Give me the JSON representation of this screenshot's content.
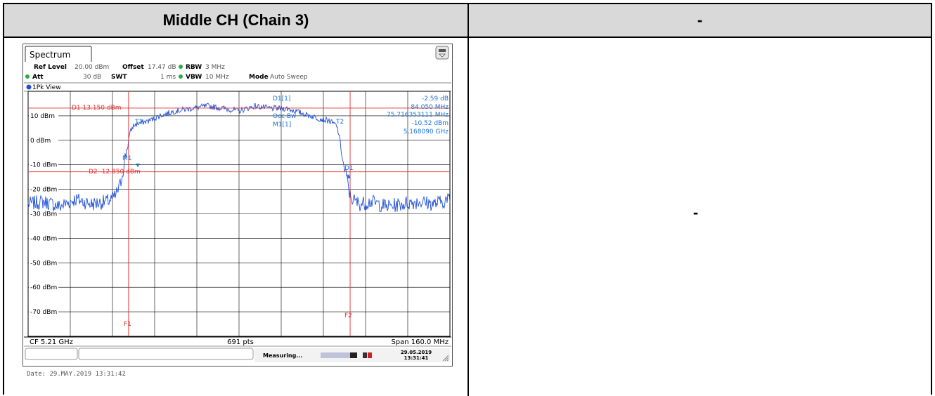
{
  "table": {
    "left_header": "Middle CH (Chain 3)",
    "right_header": "-",
    "right_content": "-"
  },
  "analyzer": {
    "tab_label": "Spectrum",
    "settings": {
      "ref_level_label": "Ref Level",
      "ref_level_value": "20.00 dBm",
      "offset_label": "Offset",
      "offset_value": "17.47 dB",
      "rbw_label": "RBW",
      "rbw_value": "3 MHz",
      "att_label": "Att",
      "att_value": "30 dB",
      "swt_label": "SWT",
      "swt_value": "1 ms",
      "vbw_label": "VBW",
      "vbw_value": "10 MHz",
      "mode_label": "Mode",
      "mode_value": "Auto Sweep"
    },
    "view_label": "1Pk View",
    "marker_readout": {
      "d1_label": "D1[1]",
      "d1_value": "-2.59 dB",
      "d1_freq": "84.050 MHz",
      "occ_bw_label": "Occ Bw",
      "occ_bw_value": "75.716353111 MHz",
      "m1_label": "M1[1]",
      "m1_value": "-10.52 dBm",
      "m1_freq": "5.168090 GHz"
    },
    "display_lines": {
      "d1": "D1  13.150 dBm",
      "d2": "D2  -12.850 dBm"
    },
    "markers": {
      "t1": "T1",
      "t2": "T2",
      "m1": "M1",
      "d1": "D1",
      "f1": "F1",
      "f2": "F2"
    },
    "footer": {
      "cf": "CF 5.21 GHz",
      "pts": "691 pts",
      "span": "Span 160.0 MHz"
    },
    "status": {
      "measuring": "Measuring...",
      "date": "29.05.2019",
      "time": "13:31:41"
    },
    "date_stamp": "Date: 29.MAY.2019  13:31:42",
    "colors": {
      "trace": "#1f4fd6",
      "lines": "#e03030",
      "readout": "#1a73d9"
    }
  },
  "chart_data": {
    "type": "line",
    "y_axis_ticks": [
      "10 dBm",
      "0 dBm",
      "-10 dBm",
      "-20 dBm",
      "-30 dBm",
      "-40 dBm",
      "-50 dBm",
      "-60 dBm",
      "-70 dBm"
    ],
    "ylim": [
      -80,
      20
    ],
    "xlim_mhz": [
      5130,
      5290
    ],
    "grid": true,
    "series": [
      {
        "x": [
          5130,
          5136,
          5142,
          5148,
          5154,
          5160,
          5163,
          5165,
          5166,
          5167,
          5168,
          5169,
          5170,
          5172,
          5176,
          5180,
          5186,
          5192,
          5198,
          5204,
          5210,
          5216,
          5222,
          5228,
          5234,
          5240,
          5244,
          5247,
          5248,
          5249,
          5250,
          5251,
          5252,
          5253,
          5254,
          5256,
          5260,
          5266,
          5272,
          5278,
          5284,
          5290
        ],
        "y": [
          -26,
          -25,
          -27,
          -24,
          -26,
          -25,
          -23,
          -18,
          -12,
          -6,
          0,
          4,
          6,
          7,
          8,
          10,
          12,
          13,
          14,
          13,
          12,
          14,
          13,
          13,
          11,
          9,
          8,
          6,
          2,
          -6,
          -12,
          -16,
          -22,
          -24,
          -25,
          -26,
          -25,
          -27,
          -26,
          -25,
          -26,
          -24
        ]
      }
    ]
  }
}
